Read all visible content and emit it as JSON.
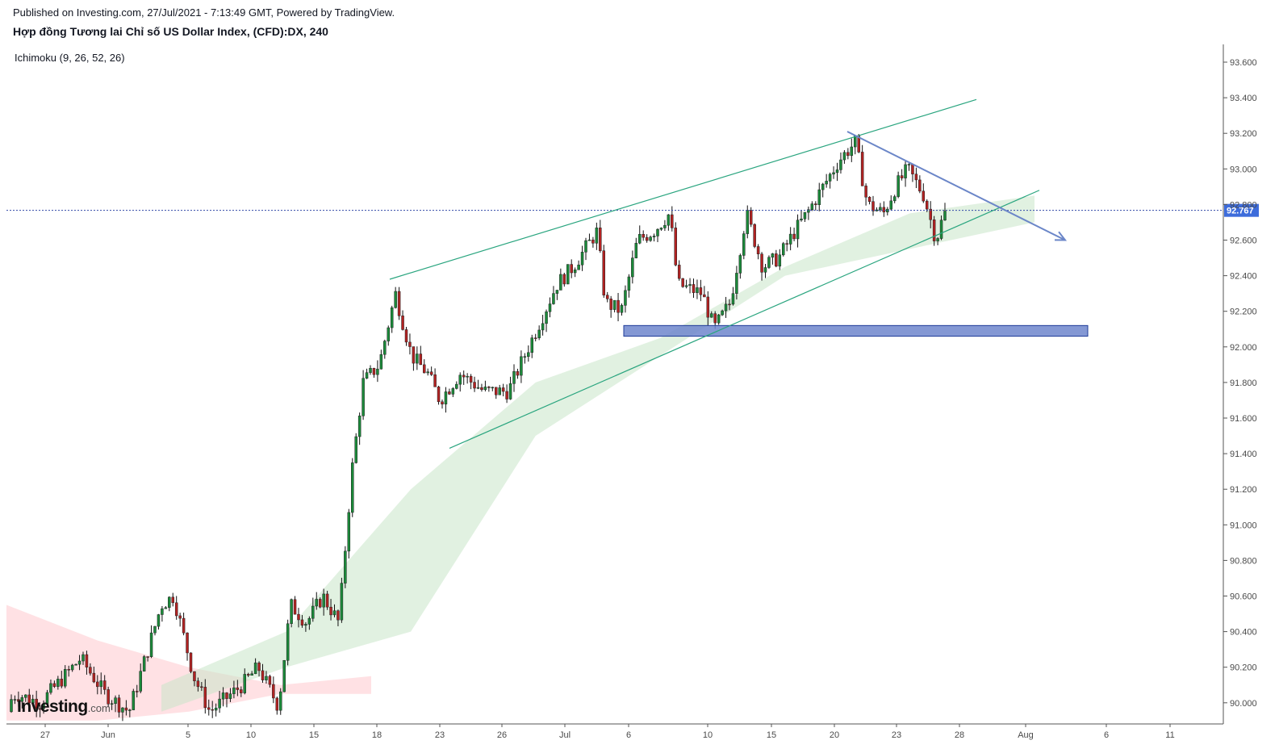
{
  "header": {
    "published": "Published on Investing.com, 27/Jul/2021 - 7:13:49 GMT, Powered by TradingView.",
    "title": "Hợp đồng Tương lai Chỉ số US Dollar Index, (CFD):DX, 240",
    "indicator": "Ichimoku (9, 26, 52, 26)"
  },
  "logo": {
    "main": "Investing",
    "suffix": ".com"
  },
  "colors": {
    "up": "#26a69a",
    "up_body": "#1b8a3a",
    "down": "#b22222",
    "cloud_bull": "#c8e6c9",
    "cloud_bear": "#ffcdd2",
    "trendline": "#2aa57f",
    "arrow": "#6b86c8",
    "zone_fill": "#6f86cc",
    "zone_border": "#1f3c99",
    "last_price_bg": "#3d6cdb",
    "last_price_line": "#3248a8"
  },
  "chart_data": {
    "type": "candlestick",
    "symbol": "DX",
    "interval": "240",
    "ylim": [
      89.9,
      93.7
    ],
    "y_ticks": [
      "90.000",
      "90.200",
      "90.400",
      "90.600",
      "90.800",
      "91.000",
      "91.200",
      "91.400",
      "91.600",
      "91.800",
      "92.000",
      "92.200",
      "92.400",
      "92.600",
      "92.800",
      "93.000",
      "93.200",
      "93.400",
      "93.600"
    ],
    "x_ticks": [
      "27",
      "Jun",
      "5",
      "10",
      "15",
      "18",
      "23",
      "26",
      "Jul",
      "6",
      "10",
      "15",
      "20",
      "23",
      "28",
      "Aug",
      "6",
      "11"
    ],
    "last_price": "92.767",
    "candles_close_path": [
      [
        0,
        89.95
      ],
      [
        20,
        90.05
      ],
      [
        50,
        90.0
      ],
      [
        100,
        90.25
      ],
      [
        130,
        90.05
      ],
      [
        160,
        89.95
      ],
      [
        200,
        90.55
      ],
      [
        215,
        90.6
      ],
      [
        240,
        90.15
      ],
      [
        260,
        89.95
      ],
      [
        300,
        90.1
      ],
      [
        320,
        90.2
      ],
      [
        345,
        89.98
      ],
      [
        360,
        90.55
      ],
      [
        380,
        90.45
      ],
      [
        400,
        90.6
      ],
      [
        420,
        90.45
      ],
      [
        436,
        91.3
      ],
      [
        450,
        91.8
      ],
      [
        470,
        91.9
      ],
      [
        490,
        92.3
      ],
      [
        510,
        91.95
      ],
      [
        530,
        91.85
      ],
      [
        545,
        91.7
      ],
      [
        570,
        91.85
      ],
      [
        600,
        91.75
      ],
      [
        630,
        91.75
      ],
      [
        660,
        92.05
      ],
      [
        690,
        92.35
      ],
      [
        710,
        92.45
      ],
      [
        740,
        92.65
      ],
      [
        750,
        92.25
      ],
      [
        770,
        92.2
      ],
      [
        790,
        92.6
      ],
      [
        810,
        92.65
      ],
      [
        830,
        92.75
      ],
      [
        840,
        92.35
      ],
      [
        870,
        92.3
      ],
      [
        885,
        92.1
      ],
      [
        905,
        92.25
      ],
      [
        925,
        92.75
      ],
      [
        945,
        92.45
      ],
      [
        965,
        92.5
      ],
      [
        985,
        92.65
      ],
      [
        1000,
        92.75
      ],
      [
        1020,
        92.9
      ],
      [
        1040,
        93.05
      ],
      [
        1060,
        93.15
      ],
      [
        1075,
        92.8
      ],
      [
        1095,
        92.75
      ],
      [
        1110,
        92.9
      ],
      [
        1125,
        93.0
      ],
      [
        1145,
        92.85
      ],
      [
        1160,
        92.6
      ],
      [
        1170,
        92.75
      ]
    ],
    "cloud_segments": [
      {
        "sentiment": "bearish",
        "x_range": [
          8,
          460
        ],
        "upper": [
          90.55,
          90.35,
          90.2,
          90.1,
          90.15
        ],
        "lower": [
          89.9,
          89.9,
          89.95,
          90.05,
          90.05
        ]
      },
      {
        "sentiment": "bullish",
        "x_range": [
          200,
          1282
        ],
        "upper": [
          90.1,
          90.4,
          91.2,
          91.8,
          92.05,
          92.45,
          92.75,
          92.85
        ],
        "lower": [
          89.95,
          90.2,
          90.4,
          91.5,
          91.95,
          92.4,
          92.55,
          92.7
        ]
      }
    ],
    "annotations": {
      "upper_channel": {
        "from": [
          483,
          92.38
        ],
        "to": [
          1210,
          93.39
        ]
      },
      "lower_channel": {
        "from": [
          557,
          91.43
        ],
        "to": [
          1288,
          92.88
        ]
      },
      "down_arrow": {
        "from": [
          1050,
          93.21
        ],
        "to": [
          1320,
          92.6
        ]
      },
      "support_zone": {
        "x_range": [
          773,
          1348
        ],
        "y_range": [
          92.06,
          92.12
        ]
      }
    }
  }
}
